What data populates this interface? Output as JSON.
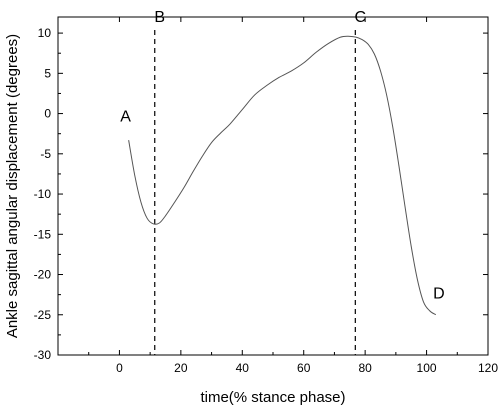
{
  "chart_data": {
    "type": "line",
    "xlabel": "time(% stance phase)",
    "ylabel": "Ankle sagittal angular displacement (degrees)",
    "xlim": [
      -20,
      120
    ],
    "ylim": [
      -30,
      12
    ],
    "x_ticks": [
      0,
      20,
      40,
      60,
      80,
      100,
      120
    ],
    "y_ticks": [
      -30,
      -25,
      -20,
      -15,
      -10,
      -5,
      0,
      5,
      10
    ],
    "series": [
      {
        "x": [
          3,
          5,
          7,
          9,
          11,
          13,
          15,
          18,
          21,
          24,
          27,
          30,
          33,
          36,
          40,
          44,
          48,
          52,
          56,
          60,
          64,
          68,
          72,
          75,
          77,
          79,
          81,
          83,
          85,
          87,
          89,
          91,
          93,
          95,
          97,
          99,
          101,
          103
        ],
        "y": [
          -3.3,
          -7.7,
          -11.0,
          -13.0,
          -13.7,
          -13.6,
          -12.7,
          -11.0,
          -9.2,
          -7.2,
          -5.3,
          -3.6,
          -2.4,
          -1.3,
          0.5,
          2.3,
          3.5,
          4.5,
          5.3,
          6.3,
          7.6,
          8.7,
          9.5,
          9.6,
          9.5,
          9.2,
          8.6,
          7.4,
          5.3,
          2.3,
          -1.7,
          -6.5,
          -11.6,
          -16.5,
          -20.6,
          -23.4,
          -24.5,
          -25.0
        ],
        "color": "#555555"
      }
    ],
    "reference_lines": [
      {
        "x": 11.5,
        "label": "B"
      },
      {
        "x": 76.8,
        "label": "C"
      }
    ],
    "annotations": [
      {
        "text": "A",
        "x": 2,
        "y": -1
      },
      {
        "text": "D",
        "x": 104,
        "y": -23
      }
    ],
    "grid": false
  }
}
